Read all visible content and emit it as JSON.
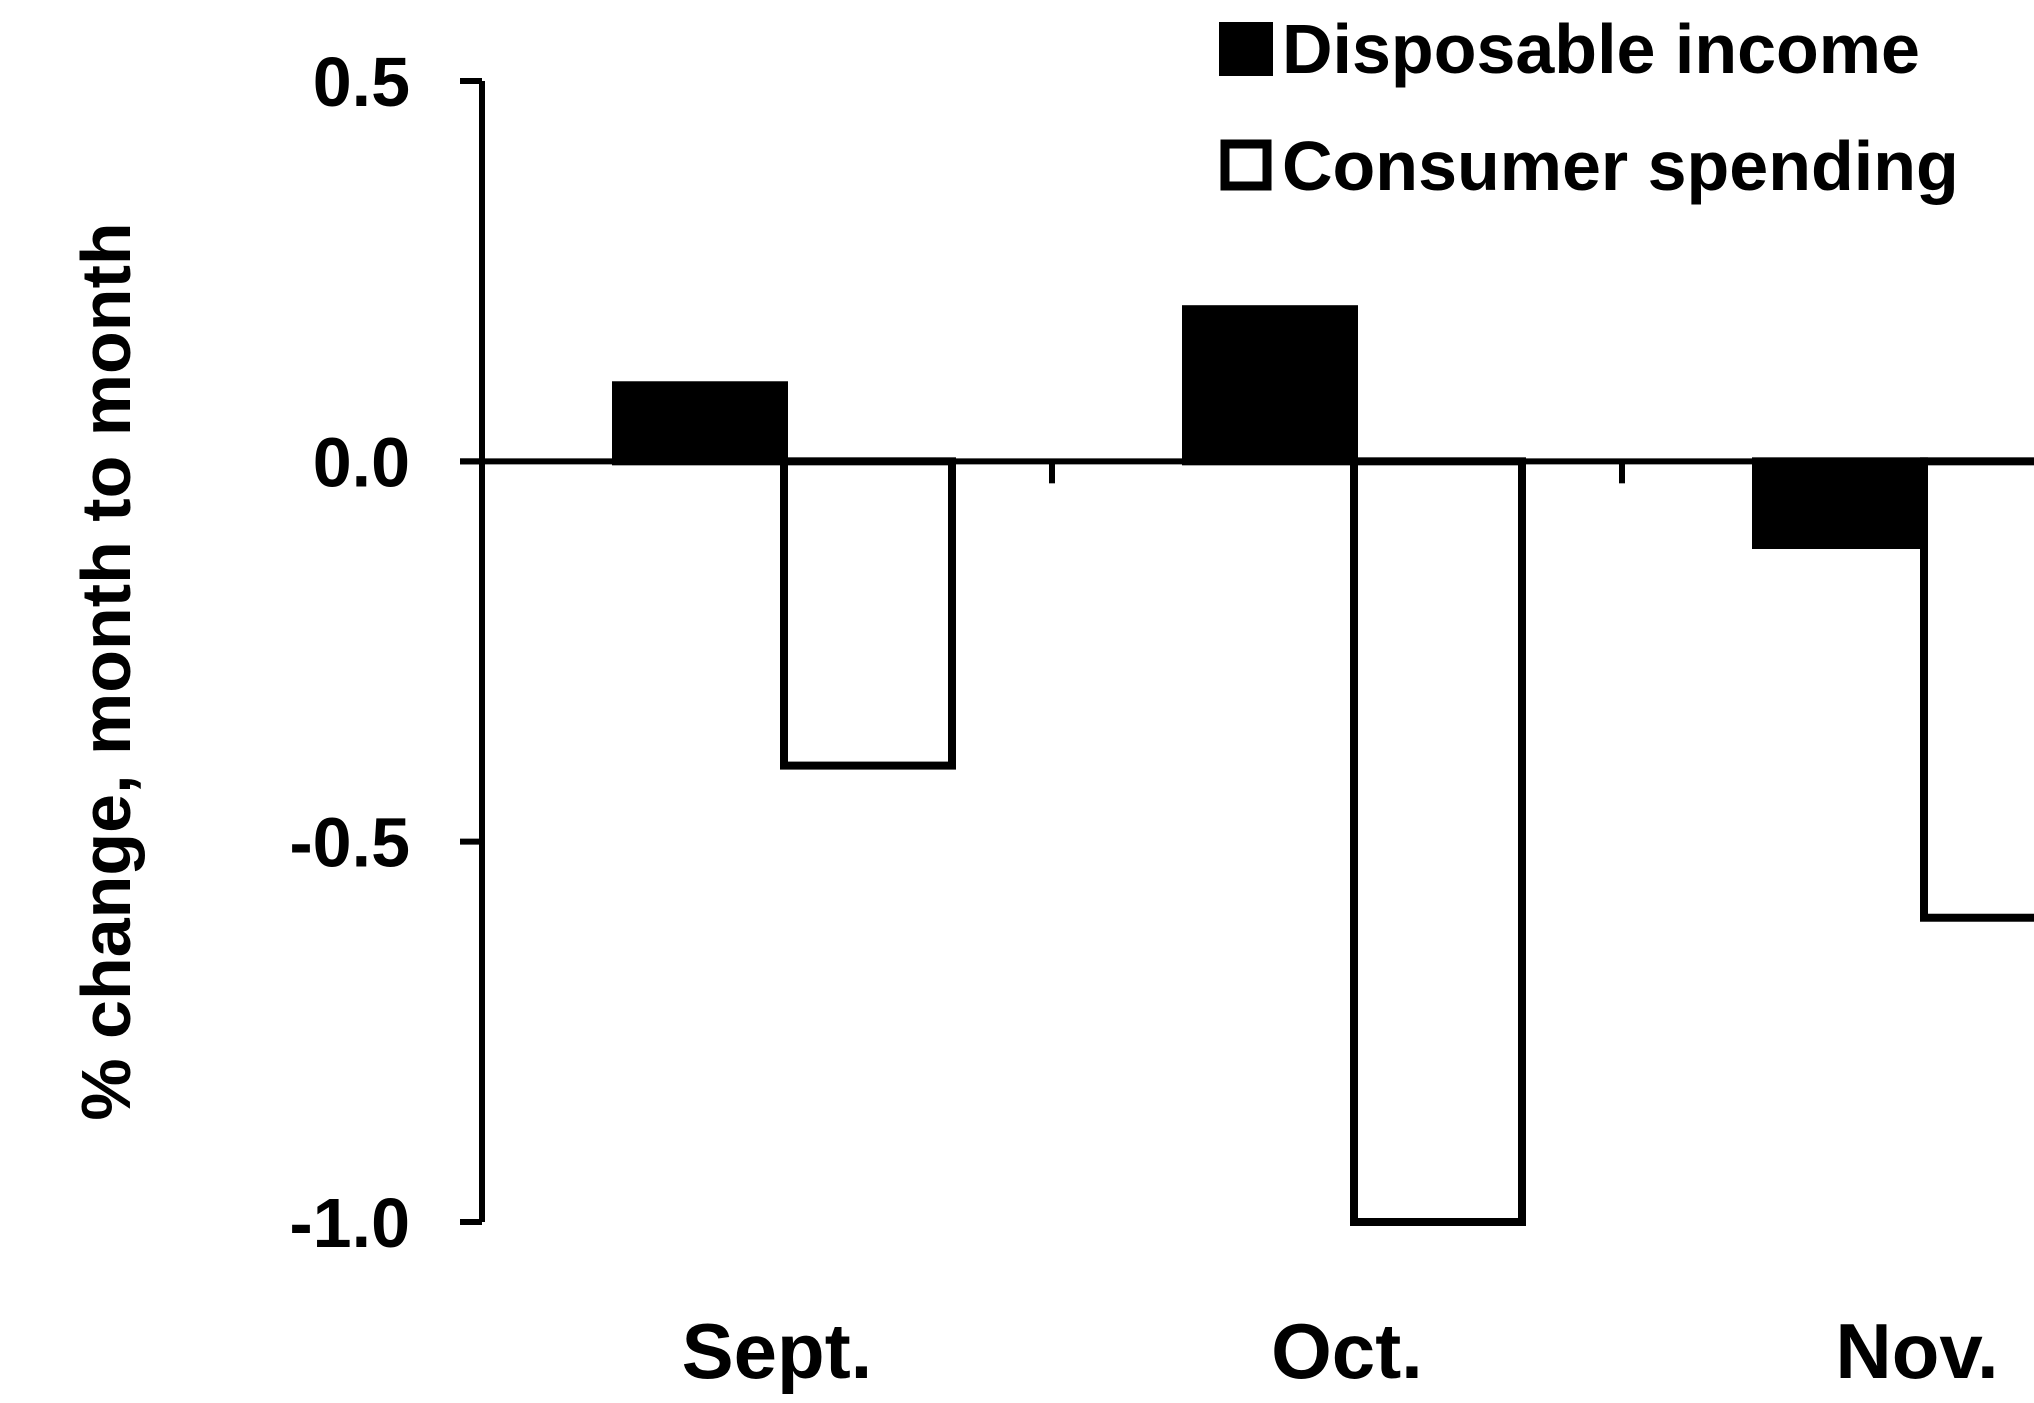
{
  "chart_data": {
    "type": "bar",
    "categories": [
      "Sept.",
      "Oct.",
      "Nov."
    ],
    "series": [
      {
        "name": "Disposable income",
        "values": [
          0.1,
          0.2,
          -0.11
        ],
        "fill": "#000000",
        "stroke": "#000000"
      },
      {
        "name": "Consumer spending",
        "values": [
          -0.4,
          -1.0,
          -0.6
        ],
        "fill": "#ffffff",
        "stroke": "#000000"
      }
    ],
    "ylabel": "% change, month to month",
    "xlabel": "",
    "ylim": [
      -1.0,
      0.5
    ],
    "yticks": [
      0.5,
      0.0,
      -0.5,
      -1.0
    ],
    "ytick_labels": [
      "0.5",
      "0.0",
      "-0.5",
      "-1.0"
    ],
    "legend_position": "top-right",
    "grid": false
  }
}
